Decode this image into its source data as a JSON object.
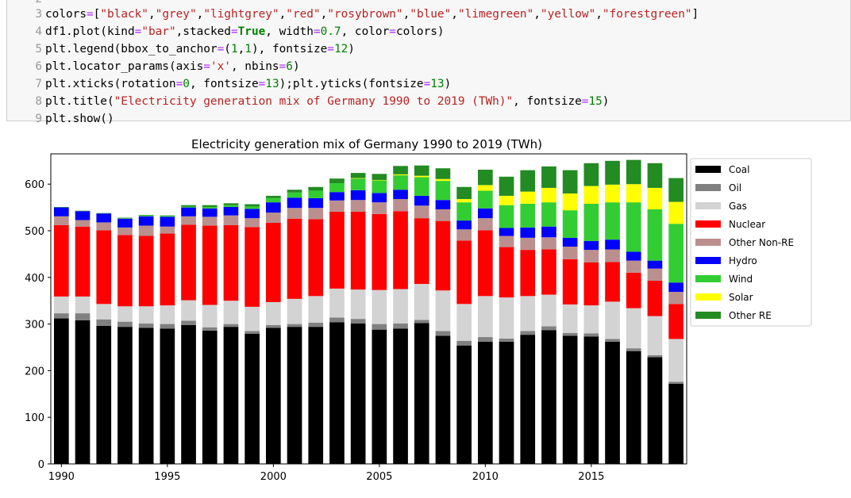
{
  "code_cell": {
    "lines": [
      {
        "number": "2",
        "tokens": []
      },
      {
        "number": "3",
        "tokens": [
          {
            "t": "colors",
            "c": "code"
          },
          {
            "t": "=",
            "c": "t-op"
          },
          {
            "t": "[",
            "c": "code"
          },
          {
            "t": "\"black\"",
            "c": "t-str"
          },
          {
            "t": ",",
            "c": "code"
          },
          {
            "t": "\"grey\"",
            "c": "t-str"
          },
          {
            "t": ",",
            "c": "code"
          },
          {
            "t": "\"lightgrey\"",
            "c": "t-str"
          },
          {
            "t": ",",
            "c": "code"
          },
          {
            "t": "\"red\"",
            "c": "t-str"
          },
          {
            "t": ",",
            "c": "code"
          },
          {
            "t": "\"rosybrown\"",
            "c": "t-str"
          },
          {
            "t": ",",
            "c": "code"
          },
          {
            "t": "\"blue\"",
            "c": "t-str"
          },
          {
            "t": ",",
            "c": "code"
          },
          {
            "t": "\"limegreen\"",
            "c": "t-str"
          },
          {
            "t": ",",
            "c": "code"
          },
          {
            "t": "\"yellow\"",
            "c": "t-str"
          },
          {
            "t": ",",
            "c": "code"
          },
          {
            "t": "\"forestgreen\"",
            "c": "t-str"
          },
          {
            "t": "]",
            "c": "code"
          }
        ]
      },
      {
        "number": "4",
        "tokens": [
          {
            "t": "df1.plot(kind",
            "c": "code"
          },
          {
            "t": "=",
            "c": "t-op"
          },
          {
            "t": "\"bar\"",
            "c": "t-str"
          },
          {
            "t": ",stacked",
            "c": "code"
          },
          {
            "t": "=",
            "c": "t-op"
          },
          {
            "t": "True",
            "c": "t-kw"
          },
          {
            "t": ", width",
            "c": "code"
          },
          {
            "t": "=",
            "c": "t-op"
          },
          {
            "t": "0.7",
            "c": "t-num"
          },
          {
            "t": ", color",
            "c": "code"
          },
          {
            "t": "=",
            "c": "t-op"
          },
          {
            "t": "colors)",
            "c": "code"
          }
        ]
      },
      {
        "number": "5",
        "tokens": [
          {
            "t": "plt.legend(bbox_to_anchor",
            "c": "code"
          },
          {
            "t": "=",
            "c": "t-op"
          },
          {
            "t": "(",
            "c": "code"
          },
          {
            "t": "1",
            "c": "t-num"
          },
          {
            "t": ",",
            "c": "code"
          },
          {
            "t": "1",
            "c": "t-num"
          },
          {
            "t": "), fontsize",
            "c": "code"
          },
          {
            "t": "=",
            "c": "t-op"
          },
          {
            "t": "12",
            "c": "t-num"
          },
          {
            "t": ")",
            "c": "code"
          }
        ]
      },
      {
        "number": "6",
        "tokens": [
          {
            "t": "plt.locator_params(axis",
            "c": "code"
          },
          {
            "t": "=",
            "c": "t-op"
          },
          {
            "t": "'x'",
            "c": "t-str"
          },
          {
            "t": ", nbins",
            "c": "code"
          },
          {
            "t": "=",
            "c": "t-op"
          },
          {
            "t": "6",
            "c": "t-num"
          },
          {
            "t": ")",
            "c": "code"
          }
        ]
      },
      {
        "number": "7",
        "tokens": [
          {
            "t": "plt.xticks(rotation",
            "c": "code"
          },
          {
            "t": "=",
            "c": "t-op"
          },
          {
            "t": "0",
            "c": "t-num"
          },
          {
            "t": ", fontsize",
            "c": "code"
          },
          {
            "t": "=",
            "c": "t-op"
          },
          {
            "t": "13",
            "c": "t-num"
          },
          {
            "t": ");plt.yticks(fontsize",
            "c": "code"
          },
          {
            "t": "=",
            "c": "t-op"
          },
          {
            "t": "13",
            "c": "t-num"
          },
          {
            "t": ")",
            "c": "code"
          }
        ]
      },
      {
        "number": "8",
        "tokens": [
          {
            "t": "plt.title(",
            "c": "code"
          },
          {
            "t": "\"Electricity generation mix of Germany 1990 to 2019 (TWh)\"",
            "c": "t-str"
          },
          {
            "t": ", fontsize",
            "c": "code"
          },
          {
            "t": "=",
            "c": "t-op"
          },
          {
            "t": "15",
            "c": "t-num"
          },
          {
            "t": ")",
            "c": "code"
          }
        ]
      },
      {
        "number": "9",
        "tokens": [
          {
            "t": "plt.show()",
            "c": "code"
          }
        ]
      }
    ]
  },
  "chart_data": {
    "type": "bar",
    "stacked": true,
    "title": "Electricity generation mix of Germany 1990 to 2019 (TWh)",
    "xlabel": "",
    "ylabel": "",
    "ylim": [
      0,
      665
    ],
    "yticks": [
      0,
      100,
      200,
      300,
      400,
      500,
      600
    ],
    "xticks": [
      1990,
      1995,
      2000,
      2005,
      2010,
      2015
    ],
    "categories": [
      1990,
      1991,
      1992,
      1993,
      1994,
      1995,
      1996,
      1997,
      1998,
      1999,
      2000,
      2001,
      2002,
      2003,
      2004,
      2005,
      2006,
      2007,
      2008,
      2009,
      2010,
      2011,
      2012,
      2013,
      2014,
      2015,
      2016,
      2017,
      2018,
      2019
    ],
    "legend_position": "outside-right",
    "grid": false,
    "series": [
      {
        "name": "Coal",
        "color": "#000000",
        "values": [
          312,
          308,
          296,
          294,
          292,
          290,
          298,
          286,
          294,
          279,
          292,
          294,
          294,
          304,
          301,
          288,
          290,
          302,
          275,
          254,
          262,
          262,
          277,
          287,
          275,
          273,
          262,
          242,
          229,
          172
        ]
      },
      {
        "name": "Oil",
        "color": "#808080",
        "values": [
          11,
          15,
          14,
          11,
          9,
          10,
          9,
          7,
          6,
          6,
          6,
          6,
          9,
          10,
          10,
          12,
          11,
          7,
          10,
          10,
          10,
          7,
          8,
          8,
          6,
          7,
          6,
          6,
          4,
          4
        ]
      },
      {
        "name": "Gas",
        "color": "#d3d3d3",
        "values": [
          36,
          36,
          33,
          33,
          37,
          40,
          44,
          48,
          50,
          52,
          49,
          54,
          57,
          62,
          63,
          73,
          74,
          77,
          87,
          79,
          88,
          88,
          75,
          68,
          61,
          60,
          80,
          86,
          84,
          92
        ]
      },
      {
        "name": "Nuclear",
        "color": "#ff0000",
        "values": [
          153,
          150,
          158,
          153,
          151,
          154,
          162,
          170,
          162,
          171,
          170,
          172,
          165,
          165,
          167,
          163,
          167,
          141,
          149,
          136,
          141,
          108,
          99,
          97,
          97,
          92,
          85,
          76,
          76,
          75
        ]
      },
      {
        "name": "Other Non-RE",
        "color": "#bc8f8f",
        "values": [
          19,
          14,
          17,
          16,
          22,
          15,
          18,
          19,
          21,
          19,
          22,
          23,
          24,
          24,
          25,
          25,
          26,
          27,
          25,
          24,
          26,
          24,
          26,
          26,
          27,
          27,
          27,
          26,
          26,
          26
        ]
      },
      {
        "name": "Hydro",
        "color": "#0000ff",
        "values": [
          19,
          19,
          19,
          19,
          20,
          21,
          19,
          18,
          18,
          20,
          22,
          22,
          21,
          18,
          21,
          20,
          20,
          21,
          20,
          19,
          21,
          17,
          22,
          23,
          19,
          19,
          21,
          19,
          17,
          20
        ]
      },
      {
        "name": "Wind",
        "color": "#32cd32",
        "values": [
          0,
          0,
          0,
          1,
          2,
          2,
          2,
          3,
          4,
          5,
          9,
          11,
          16,
          19,
          25,
          27,
          31,
          40,
          41,
          39,
          38,
          49,
          51,
          52,
          59,
          80,
          80,
          106,
          110,
          126
        ]
      },
      {
        "name": "Solar",
        "color": "#ffff00",
        "values": [
          0,
          0,
          0,
          0,
          0,
          0,
          0,
          0,
          0,
          0,
          0,
          0,
          0,
          0,
          1,
          1,
          2,
          3,
          4,
          7,
          12,
          20,
          26,
          31,
          36,
          38,
          38,
          39,
          46,
          47
        ]
      },
      {
        "name": "Other RE",
        "color": "#228b22",
        "values": [
          1,
          1,
          1,
          1,
          1,
          1,
          3,
          4,
          4,
          5,
          5,
          6,
          8,
          10,
          11,
          13,
          18,
          22,
          23,
          26,
          33,
          41,
          46,
          46,
          50,
          49,
          51,
          52,
          53,
          51
        ]
      }
    ]
  }
}
